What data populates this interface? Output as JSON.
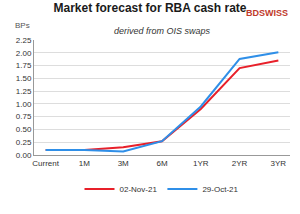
{
  "chart_data": {
    "type": "line",
    "title": "Market forecast for RBA cash rate",
    "subtitle": "derived from OIS swaps",
    "y_label": "BPs",
    "annotations": [
      {
        "text": "BDSWISS"
      }
    ],
    "categories": [
      "Current",
      "1M",
      "3M",
      "6M",
      "1YR",
      "2YR",
      "3YR"
    ],
    "series": [
      {
        "name": "02-Nov-21",
        "color": "#e8202a",
        "values": [
          0.1,
          0.1,
          0.15,
          0.27,
          0.9,
          1.7,
          1.85
        ]
      },
      {
        "name": "29-Oct-21",
        "color": "#2f8fe8",
        "values": [
          0.1,
          0.1,
          0.07,
          0.27,
          0.95,
          1.88,
          2.01
        ]
      }
    ],
    "ylim": [
      0,
      2.25
    ],
    "yticks": [
      {
        "value": 0,
        "label": "0.00"
      },
      {
        "value": 0.25,
        "label": "0.25"
      },
      {
        "value": 0.5,
        "label": "0.50"
      },
      {
        "value": 0.75,
        "label": "0.75"
      },
      {
        "value": 1,
        "label": "1.00"
      },
      {
        "value": 1.25,
        "label": "1.25"
      },
      {
        "value": 1.5,
        "label": "1.50"
      },
      {
        "value": 1.75,
        "label": "1.75"
      },
      {
        "value": 2,
        "label": "2.00"
      },
      {
        "value": 2.25,
        "label": "2.25"
      }
    ],
    "grid": true,
    "legend": "bottom",
    "line_style": "solid"
  }
}
